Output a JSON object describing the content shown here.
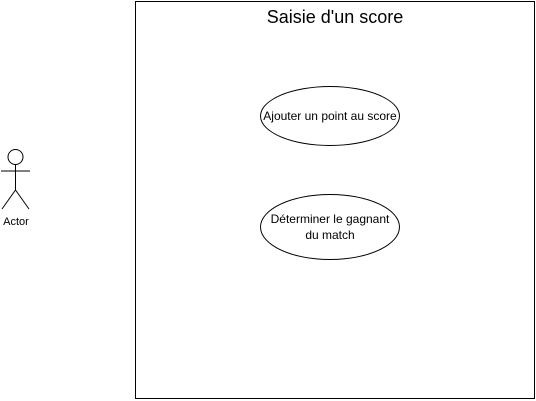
{
  "diagram": {
    "system": {
      "title": "Saisie d'un score"
    },
    "use_cases": [
      {
        "label": "Ajouter un point au score"
      },
      {
        "label": "Déterminer le gagnant du match"
      }
    ],
    "actor": {
      "label": "Actor"
    }
  }
}
